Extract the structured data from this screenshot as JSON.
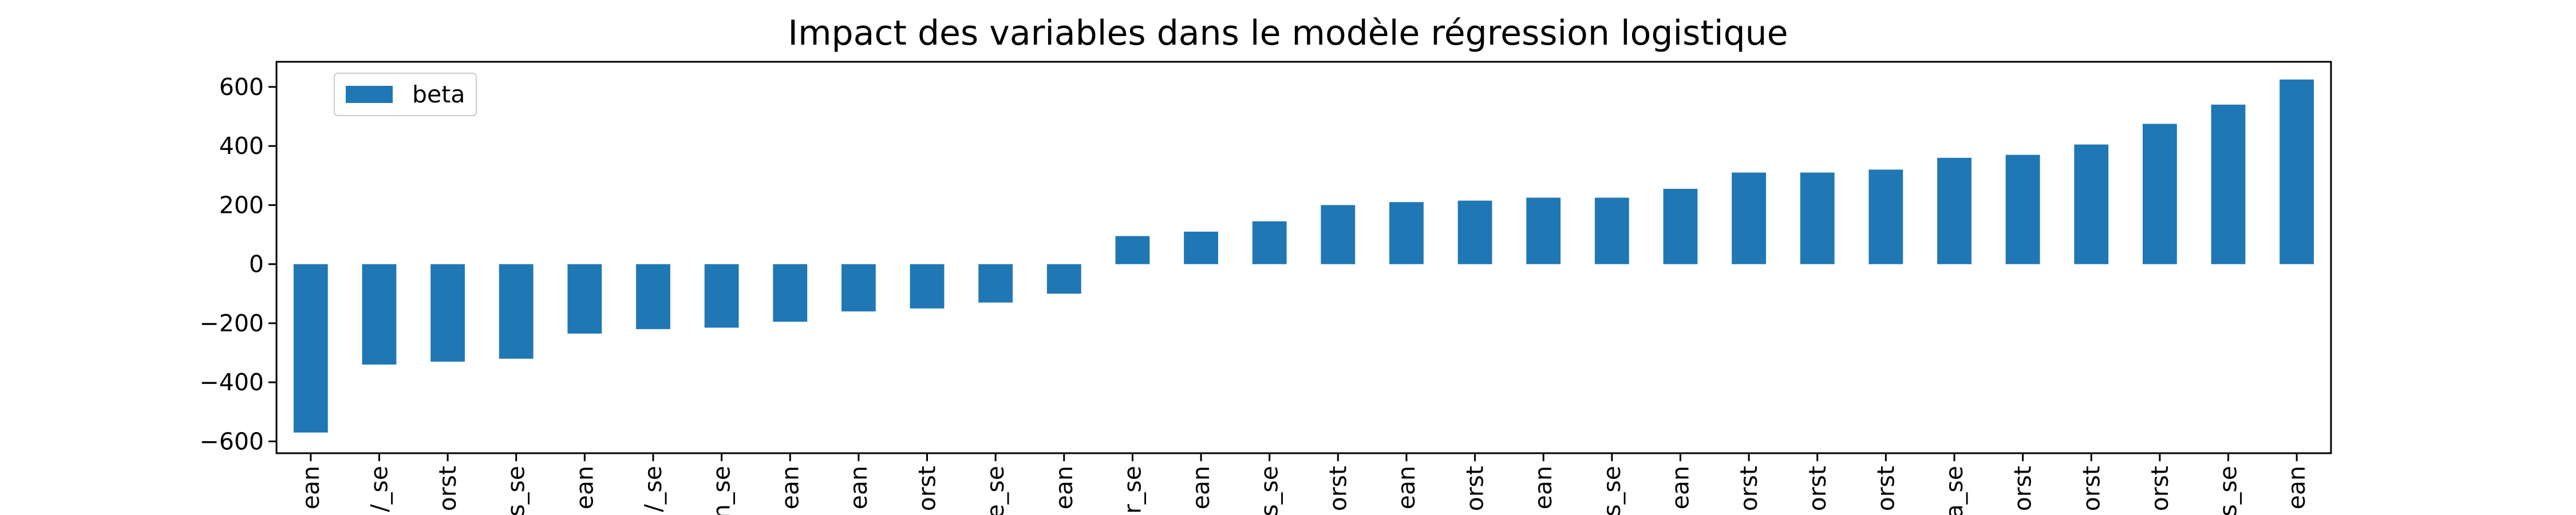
{
  "chart_data": {
    "type": "bar",
    "title": "Impact des variables dans le modèle régression logistique",
    "xlabel": "",
    "ylabel": "",
    "ylim": [
      -640,
      685
    ],
    "yticks": [
      -600,
      -400,
      -200,
      0,
      200,
      400,
      600
    ],
    "ytick_labels": [
      "−600",
      "−400",
      "−200",
      "0",
      "200",
      "400",
      "600"
    ],
    "grid": false,
    "legend_position": "top-left",
    "series": [
      {
        "name": "beta",
        "color": "#1f77b4",
        "values": [
          -570,
          -340,
          -330,
          -320,
          -235,
          -220,
          -215,
          -195,
          -160,
          -150,
          -130,
          -100,
          95,
          110,
          145,
          200,
          210,
          215,
          225,
          225,
          255,
          310,
          310,
          320,
          360,
          370,
          405,
          475,
          540,
          625
        ]
      }
    ],
    "categories": [
      "ean",
      "/_se",
      "orst",
      "s_se",
      "ean",
      "/_se",
      "n_se",
      "ean",
      "ean",
      "orst",
      "e_se",
      "ean",
      "r_se",
      "ean",
      "s_se",
      "orst",
      "ean",
      "orst",
      "ean",
      "s_se",
      "ean",
      "orst",
      "orst",
      "orst",
      "a_se",
      "orst",
      "orst",
      "orst",
      "s_se",
      "ean"
    ]
  }
}
